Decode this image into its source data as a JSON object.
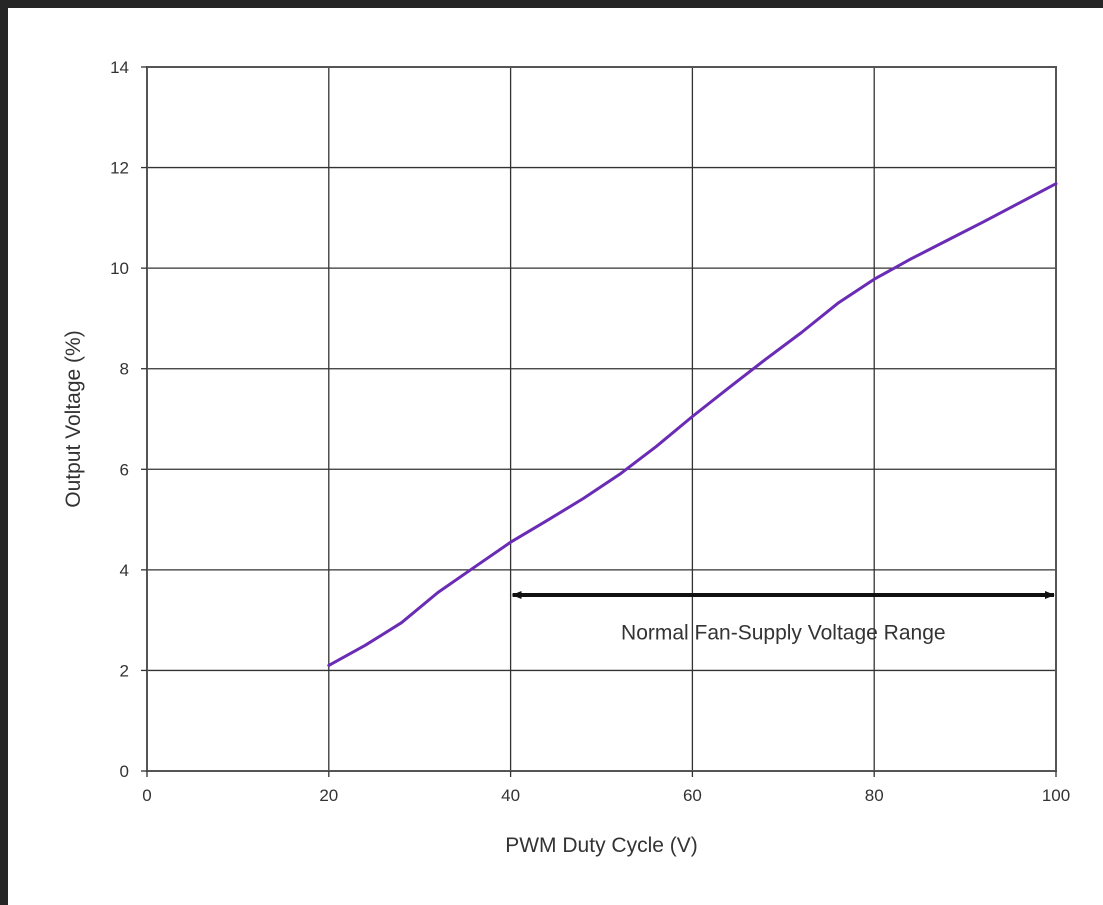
{
  "chart_data": {
    "type": "line",
    "xlabel": "PWM Duty Cycle (V)",
    "ylabel": "Output Voltage (%)",
    "xlim": [
      0,
      100
    ],
    "ylim": [
      0,
      14
    ],
    "x_ticks": [
      0,
      20,
      40,
      60,
      80,
      100
    ],
    "y_ticks": [
      0,
      2,
      4,
      6,
      8,
      10,
      12,
      14
    ],
    "x_tick_labels": [
      "0",
      "20",
      "40",
      "60",
      "80",
      "100"
    ],
    "y_tick_labels": [
      "0",
      "2",
      "4",
      "6",
      "8",
      "10",
      "12",
      "14"
    ],
    "grid": true,
    "series": [
      {
        "color": "#6a2bb5",
        "points": [
          [
            20,
            2.1
          ],
          [
            24,
            2.5
          ],
          [
            28,
            2.95
          ],
          [
            32,
            3.55
          ],
          [
            36,
            4.05
          ],
          [
            40,
            4.55
          ],
          [
            44,
            4.98
          ],
          [
            48,
            5.42
          ],
          [
            52,
            5.9
          ],
          [
            56,
            6.45
          ],
          [
            60,
            7.05
          ],
          [
            64,
            7.62
          ],
          [
            68,
            8.18
          ],
          [
            72,
            8.72
          ],
          [
            76,
            9.3
          ],
          [
            80,
            9.78
          ],
          [
            84,
            10.18
          ],
          [
            88,
            10.55
          ],
          [
            92,
            10.92
          ],
          [
            96,
            11.3
          ],
          [
            100,
            11.68
          ]
        ]
      }
    ],
    "annotations": [
      {
        "text": "Normal Fan-Supply Voltage Range",
        "arrow_from_x": 40,
        "arrow_to_x": 100,
        "arrow_y": 3.5,
        "text_x": 70,
        "text_y": 2.75
      }
    ]
  }
}
